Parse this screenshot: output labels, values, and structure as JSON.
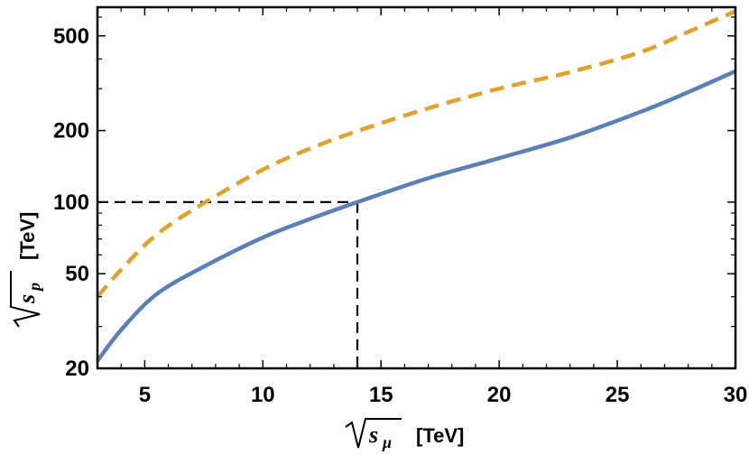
{
  "chart_data": {
    "type": "line",
    "title": "",
    "xlabel": {
      "symbol": "s",
      "subscript": "μ",
      "unit": "[TeV]"
    },
    "ylabel": {
      "symbol": "s",
      "subscript": "p",
      "unit": "[TeV]"
    },
    "xlim": [
      3,
      30
    ],
    "ylim": [
      20,
      660
    ],
    "yscale": "log",
    "x_ticks": [
      5,
      10,
      15,
      20,
      25,
      30
    ],
    "x_tick_labels": [
      "5",
      "10",
      "15",
      "20",
      "25",
      "30"
    ],
    "y_ticks": [
      20,
      50,
      100,
      200,
      500
    ],
    "y_tick_labels": [
      "20",
      "50",
      "100",
      "200",
      "500"
    ],
    "grid": false,
    "series": [
      {
        "name": "solid",
        "color": "#5b7fb8",
        "style": "solid",
        "x": [
          3,
          4,
          5.5,
          7.5,
          10,
          12,
          14,
          17,
          20,
          23,
          26,
          28,
          30
        ],
        "y": [
          21.5,
          29,
          41,
          53.5,
          71,
          85,
          100,
          126,
          153,
          187,
          240,
          290,
          355
        ]
      },
      {
        "name": "dashed",
        "color": "#e0a22d",
        "style": "dashed",
        "x": [
          3,
          4,
          5.5,
          7.5,
          10,
          12,
          14,
          17,
          20,
          23,
          26,
          28,
          30
        ],
        "y": [
          40,
          52,
          73,
          99,
          137,
          168,
          199,
          248,
          300,
          352,
          428,
          520,
          635
        ]
      }
    ],
    "annotations": [
      {
        "type": "reference-lines",
        "x": 14,
        "y": 100,
        "style": "dashed",
        "color": "#000000"
      }
    ]
  }
}
